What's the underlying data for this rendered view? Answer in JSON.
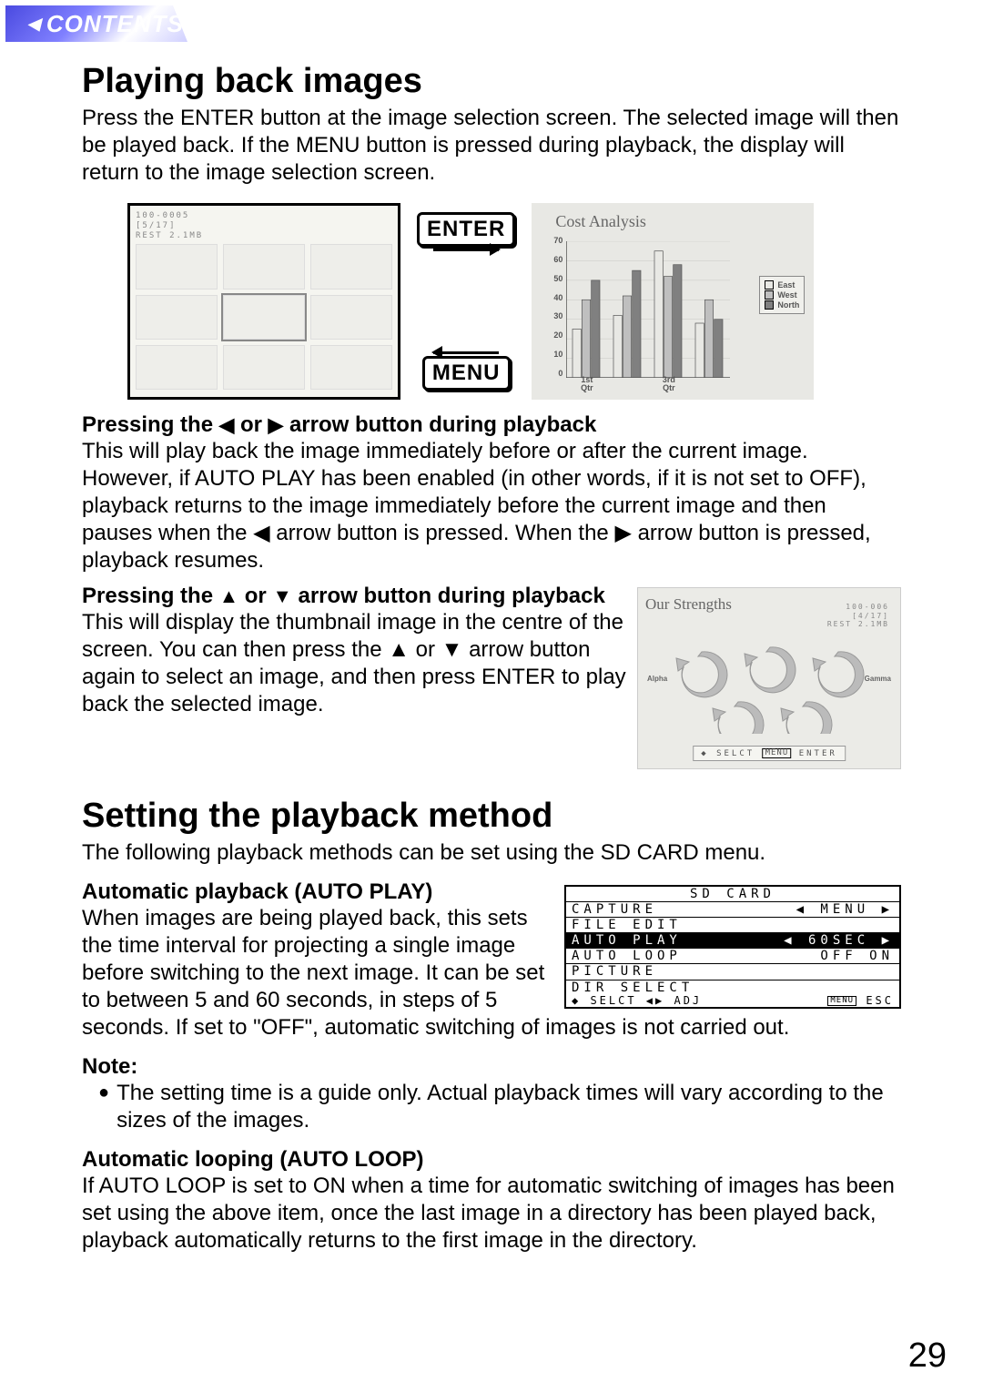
{
  "contents_label": "CONTENTS",
  "page_number": "29",
  "section1": {
    "heading": "Playing back images",
    "intro": "Press the ENTER button at the image selection screen. The selected image will then be played back. If the MENU button is pressed during playback, the display will return to the image selection screen.",
    "thumb_header": [
      "100-0005",
      "[5/17]",
      "REST 2.1MB"
    ],
    "enter_key": "ENTER",
    "menu_key": "MENU",
    "chart": {
      "title": "Cost Analysis",
      "type": "bar",
      "ylim": [
        0,
        70
      ],
      "ytick_step": 10,
      "yticks": [
        "0",
        "10",
        "20",
        "30",
        "40",
        "50",
        "60",
        "70"
      ],
      "categories": [
        "1st\nQtr",
        "",
        "3rd\nQtr",
        ""
      ],
      "series": [
        {
          "name": "East",
          "color": "#e8e8e4",
          "pattern": "none",
          "values": [
            25,
            32,
            65,
            28
          ]
        },
        {
          "name": "West",
          "color": "#bfbfbf",
          "pattern": "hatch",
          "values": [
            40,
            42,
            52,
            40
          ]
        },
        {
          "name": "North",
          "color": "#808080",
          "pattern": "solid",
          "values": [
            50,
            55,
            58,
            30
          ]
        }
      ],
      "background_color": "#e8e8e4",
      "grid_color": "#c8c8c4",
      "bar_gap": 6,
      "group_gap": 14
    },
    "sub1_heading_pre": "Pressing the ",
    "sub1_heading_mid": " or ",
    "sub1_heading_post": " arrow button during playback",
    "sub1_body": "This will play back the image immediately before or after the current image. However, if AUTO PLAY has been enabled (in other words, if it is not set to OFF), playback returns to the image immediately before the current image and then pauses when the ◀ arrow button is pressed. When the ▶ arrow button is pressed, playback resumes.",
    "sub2_heading_pre": "Pressing the ",
    "sub2_heading_mid": " or ",
    "sub2_heading_post": " arrow button during playback",
    "sub2_body": "This will display the thumbnail image in the centre of the screen. You can then press the ▲ or ▼ arrow button again to select an image, and then press ENTER to play back the selected image.",
    "strengths": {
      "title": "Our Strengths",
      "meta": [
        "100-006",
        "[4/17]",
        "REST 2.1MB"
      ],
      "labels": {
        "left": "Alpha",
        "right": "Gamma"
      },
      "bottombar_left": "SELCT",
      "bottombar_right": "ENTER"
    }
  },
  "section2": {
    "heading": "Setting the playback method",
    "intro": "The following playback methods can be set using the SD CARD menu.",
    "sub1_heading": "Automatic playback (AUTO PLAY)",
    "sub1_body": "When images are being played back, this sets the time interval for projecting a single image before switching to the next image. It can be set to between 5 and 60 seconds, in steps of 5 seconds. If set to \"OFF\", automatic switching of images is not carried out.",
    "sd_menu": {
      "title": "SD CARD",
      "rows": [
        {
          "l": "CAPTURE",
          "r": "◀    MENU   ▶",
          "hl": false
        },
        {
          "l": "FILE EDIT",
          "r": "",
          "hl": false
        },
        {
          "l": "AUTO PLAY",
          "r": "◀   60SEC  ▶",
          "hl": true
        },
        {
          "l": "AUTO LOOP",
          "r": "OFF   ON",
          "hl": false
        },
        {
          "l": "PICTURE",
          "r": "",
          "hl": false
        },
        {
          "l": "DIR SELECT",
          "r": "",
          "hl": false
        }
      ],
      "footer_left": "◆ SELCT ◀▶ ADJ",
      "footer_right_key": "MENU",
      "footer_right": "ESC"
    },
    "note_label": "Note:",
    "note_text": "The setting time is a guide only. Actual playback times will vary according to the sizes of the images.",
    "sub2_heading": "Automatic looping (AUTO LOOP)",
    "sub2_body": "If AUTO LOOP is set to ON when a time for automatic switching of images has been set using the above item, once the last image in a directory has been played back, playback automatically returns to the first image in the directory."
  }
}
